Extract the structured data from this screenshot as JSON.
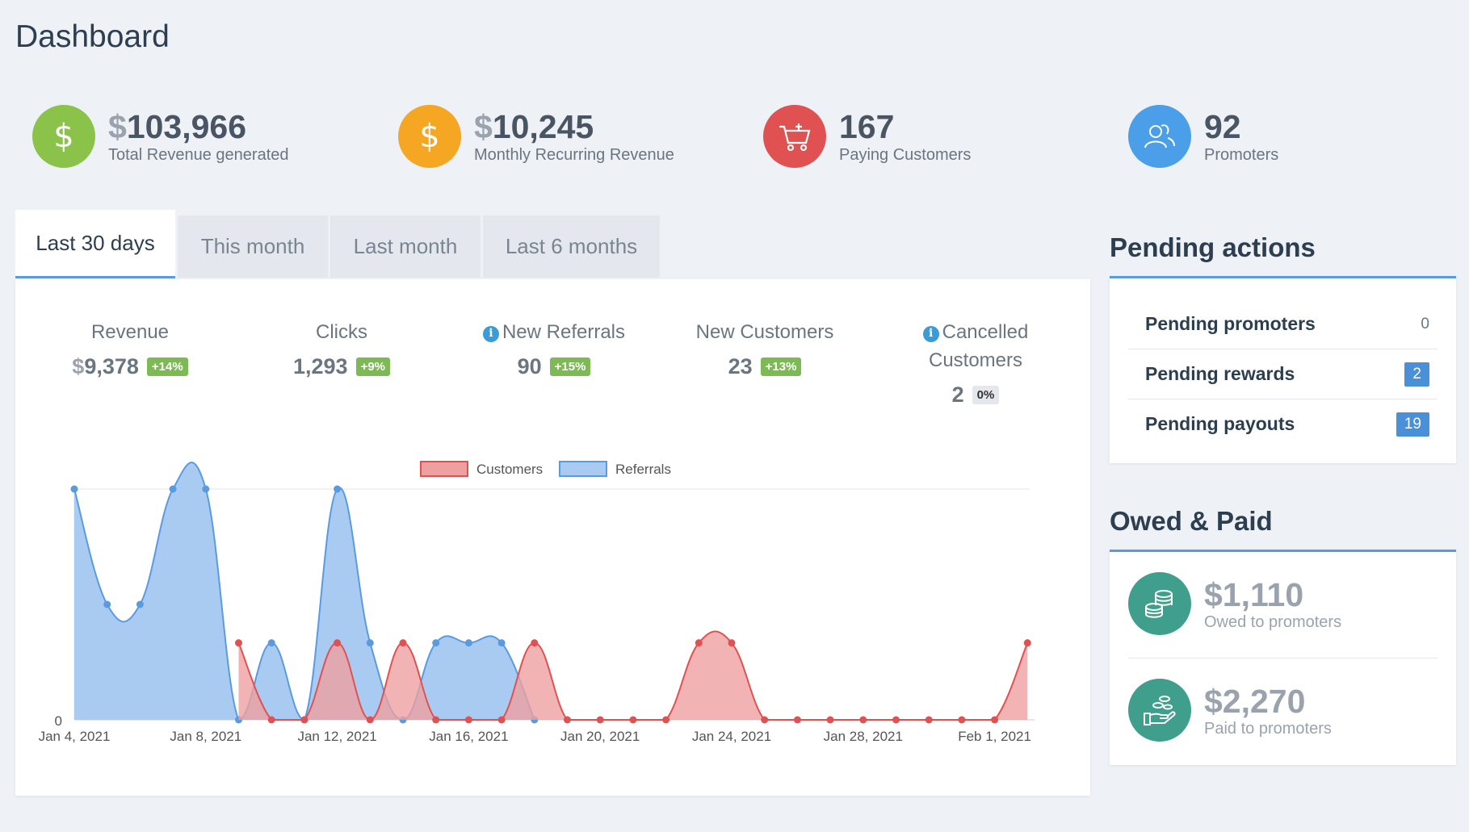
{
  "page": {
    "title": "Dashboard"
  },
  "kpis": [
    {
      "currency": "$",
      "value": "103,966",
      "label": "Total Revenue generated",
      "color": "#8bc34a",
      "icon": "dollar-icon"
    },
    {
      "currency": "$",
      "value": "10,245",
      "label": "Monthly Recurring Revenue",
      "color": "#f5a623",
      "icon": "dollar-icon"
    },
    {
      "currency": "",
      "value": "167",
      "label": "Paying Customers",
      "color": "#e05252",
      "icon": "cart-icon"
    },
    {
      "currency": "",
      "value": "92",
      "label": "Promoters",
      "color": "#4a9fe8",
      "icon": "users-icon"
    }
  ],
  "tabs": [
    {
      "label": "Last 30 days",
      "active": true
    },
    {
      "label": "This month",
      "active": false
    },
    {
      "label": "Last month",
      "active": false
    },
    {
      "label": "Last 6 months",
      "active": false
    }
  ],
  "stats": [
    {
      "label": "Revenue",
      "currency": "$",
      "value": "9,378",
      "change": "+14%",
      "info": false
    },
    {
      "label": "Clicks",
      "currency": "",
      "value": "1,293",
      "change": "+9%",
      "info": false
    },
    {
      "label": "New Referrals",
      "currency": "",
      "value": "90",
      "change": "+15%",
      "info": true
    },
    {
      "label": "New Customers",
      "currency": "",
      "value": "23",
      "change": "+13%",
      "info": false
    },
    {
      "label": "Cancelled",
      "label2": "Customers",
      "currency": "",
      "value": "2",
      "change": "0%",
      "info": true
    }
  ],
  "chart_data": {
    "type": "area",
    "legend": [
      "Customers",
      "Referrals"
    ],
    "legend_position": "top-center",
    "x_tick_labels": [
      "Jan 4, 2021",
      "Jan 8, 2021",
      "Jan 12, 2021",
      "Jan 16, 2021",
      "Jan 20, 2021",
      "Jan 24, 2021",
      "Jan 28, 2021",
      "Feb 1, 2021"
    ],
    "y_tick_labels": [
      "0"
    ],
    "x": [
      "Jan 4",
      "Jan 5",
      "Jan 6",
      "Jan 7",
      "Jan 8",
      "Jan 9",
      "Jan 10",
      "Jan 11",
      "Jan 12",
      "Jan 13",
      "Jan 14",
      "Jan 15",
      "Jan 16",
      "Jan 17",
      "Jan 18",
      "Jan 19",
      "Jan 20",
      "Jan 21",
      "Jan 22",
      "Jan 23",
      "Jan 24",
      "Jan 25",
      "Jan 26",
      "Jan 27",
      "Jan 28",
      "Jan 29",
      "Jan 30",
      "Jan 31",
      "Feb 1",
      "Feb 2"
    ],
    "series": [
      {
        "name": "Referrals",
        "color": "#5a9be0",
        "fill": "#a9cbf2",
        "values": [
          6,
          3,
          3,
          6,
          6,
          0,
          2,
          0,
          6,
          2,
          0,
          2,
          2,
          2,
          0,
          null,
          null,
          null,
          null,
          null,
          null,
          null,
          null,
          null,
          null,
          null,
          null,
          null,
          null,
          null
        ]
      },
      {
        "name": "Customers",
        "color": "#e05252",
        "fill": "#eea0a0",
        "values": [
          null,
          null,
          null,
          null,
          null,
          2,
          0,
          0,
          2,
          0,
          2,
          0,
          0,
          0,
          2,
          0,
          0,
          0,
          0,
          2,
          2,
          0,
          0,
          0,
          0,
          0,
          0,
          0,
          0,
          2
        ]
      }
    ],
    "ylim": [
      0,
      6
    ]
  },
  "pending_actions": {
    "title": "Pending actions",
    "items": [
      {
        "label": "Pending promoters",
        "count": "0",
        "boxed": false
      },
      {
        "label": "Pending rewards",
        "count": "2",
        "boxed": true
      },
      {
        "label": "Pending payouts",
        "count": "19",
        "boxed": true
      }
    ]
  },
  "owed_paid": {
    "title": "Owed & Paid",
    "items": [
      {
        "value": "$1,110",
        "label": "Owed to promoters",
        "icon": "coins-icon"
      },
      {
        "value": "$2,270",
        "label": "Paid to promoters",
        "icon": "hand-coins-icon"
      }
    ]
  }
}
